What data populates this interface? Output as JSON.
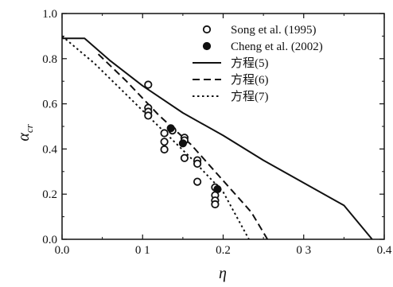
{
  "chart_data": {
    "type": "scatter",
    "xlabel": "η",
    "ylabel": "α_cr",
    "ylabel_main": "α",
    "ylabel_sub": "cr",
    "xlim": [
      0.0,
      0.4
    ],
    "ylim": [
      0.0,
      1.0
    ],
    "x_ticks": [
      0.0,
      0.1,
      0.2,
      0.3,
      0.4
    ],
    "x_tick_labels": [
      "0.0",
      "0 1",
      "0.2",
      "0 3",
      "0.4"
    ],
    "y_ticks": [
      0.0,
      0.2,
      0.4,
      0.6,
      0.8,
      1.0
    ],
    "y_tick_labels": [
      "0.0",
      "0.2",
      "0.4",
      "0.6",
      "0.8",
      "1.0"
    ],
    "grid": false,
    "legend_position": "top-right",
    "series": [
      {
        "name": "Song et al. (1995)",
        "kind": "scatter",
        "marker": "open-circle",
        "points": [
          [
            0.107,
            0.685
          ],
          [
            0.107,
            0.582
          ],
          [
            0.107,
            0.565
          ],
          [
            0.107,
            0.548
          ],
          [
            0.127,
            0.47
          ],
          [
            0.127,
            0.432
          ],
          [
            0.127,
            0.398
          ],
          [
            0.137,
            0.482
          ],
          [
            0.152,
            0.45
          ],
          [
            0.152,
            0.438
          ],
          [
            0.152,
            0.36
          ],
          [
            0.168,
            0.35
          ],
          [
            0.168,
            0.335
          ],
          [
            0.168,
            0.255
          ],
          [
            0.19,
            0.23
          ],
          [
            0.19,
            0.195
          ],
          [
            0.19,
            0.172
          ],
          [
            0.19,
            0.155
          ]
        ]
      },
      {
        "name": "Cheng et al. (2002)",
        "kind": "scatter",
        "marker": "filled-circle",
        "points": [
          [
            0.135,
            0.492
          ],
          [
            0.15,
            0.425
          ],
          [
            0.193,
            0.222
          ]
        ]
      },
      {
        "name": "方程(5)",
        "kind": "line",
        "dash": "solid",
        "points": [
          [
            0.0,
            0.89
          ],
          [
            0.028,
            0.89
          ],
          [
            0.06,
            0.79
          ],
          [
            0.1,
            0.68
          ],
          [
            0.15,
            0.56
          ],
          [
            0.2,
            0.46
          ],
          [
            0.25,
            0.35
          ],
          [
            0.3,
            0.25
          ],
          [
            0.35,
            0.15
          ],
          [
            0.385,
            0.0
          ]
        ]
      },
      {
        "name": "方程(6)",
        "kind": "line",
        "dash": "dashed",
        "points": [
          [
            0.045,
            0.82
          ],
          [
            0.08,
            0.7
          ],
          [
            0.12,
            0.55
          ],
          [
            0.16,
            0.42
          ],
          [
            0.2,
            0.26
          ],
          [
            0.235,
            0.12
          ],
          [
            0.255,
            0.0
          ]
        ]
      },
      {
        "name": "方程(7)",
        "kind": "line",
        "dash": "dotted",
        "points": [
          [
            0.0,
            0.9
          ],
          [
            0.04,
            0.78
          ],
          [
            0.08,
            0.64
          ],
          [
            0.12,
            0.5
          ],
          [
            0.16,
            0.36
          ],
          [
            0.2,
            0.21
          ],
          [
            0.232,
            0.0
          ]
        ]
      }
    ]
  }
}
